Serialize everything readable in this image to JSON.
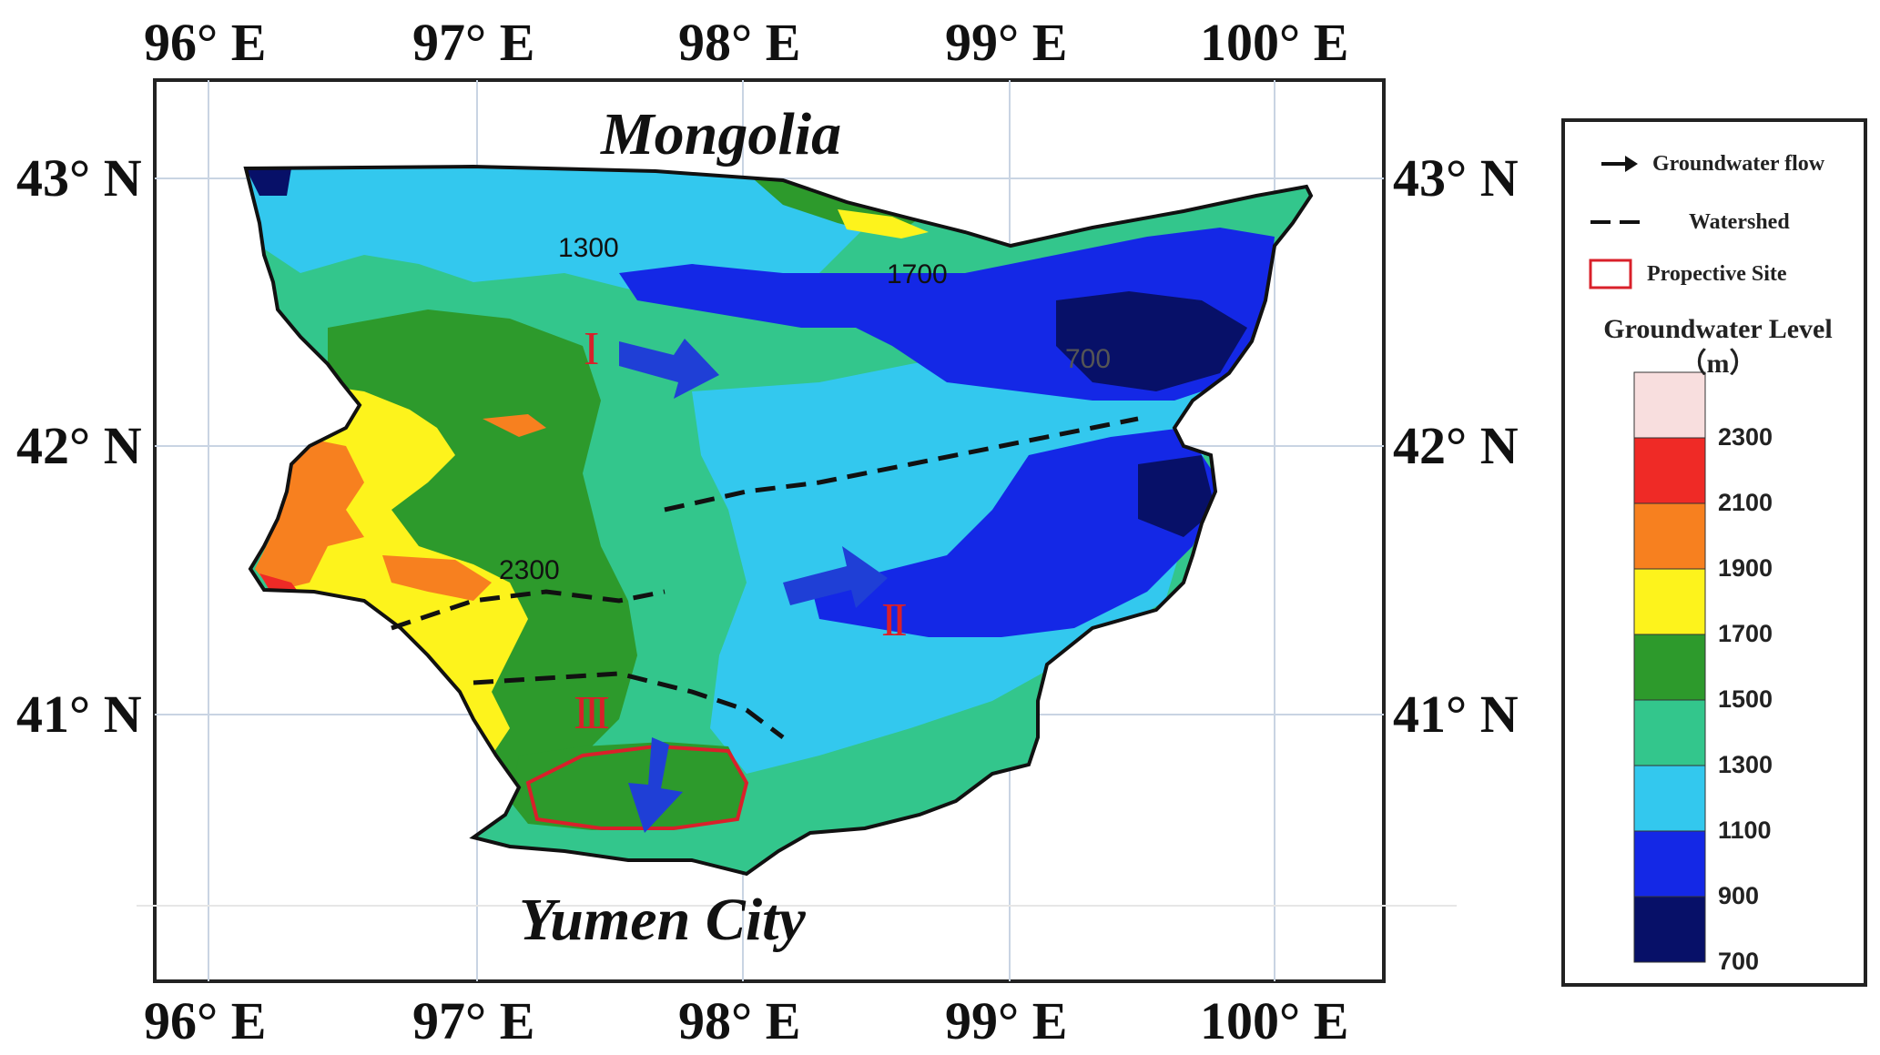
{
  "map": {
    "north_label": "Mongolia",
    "south_label": "Yumen City",
    "lon_ticks": [
      "96° E",
      "97° E",
      "98° E",
      "99° E",
      "100° E"
    ],
    "lat_ticks": [
      "43° N",
      "42° N",
      "41° N"
    ],
    "contour_labels": [
      "1300",
      "1700",
      "2300",
      "700"
    ],
    "site_labels": [
      "I",
      "II",
      "III"
    ]
  },
  "legend": {
    "items": [
      {
        "label": "Groundwater flow",
        "icon": "arrow-icon"
      },
      {
        "label": "Watershed",
        "icon": "dashed-line-icon"
      },
      {
        "label": "Propective Site",
        "icon": "red-box-icon"
      }
    ],
    "colorbar_title_line1": "Groundwater Level",
    "colorbar_title_line2": "（m）",
    "levels": [
      "2300",
      "2100",
      "1900",
      "1700",
      "1500",
      "1300",
      "1100",
      "900",
      "700"
    ],
    "colors": [
      "#f8dede",
      "#ef2a26",
      "#f7801f",
      "#fdf31c",
      "#2d9a2c",
      "#33c68c",
      "#33c8ee",
      "#1428e6",
      "#071068"
    ]
  }
}
